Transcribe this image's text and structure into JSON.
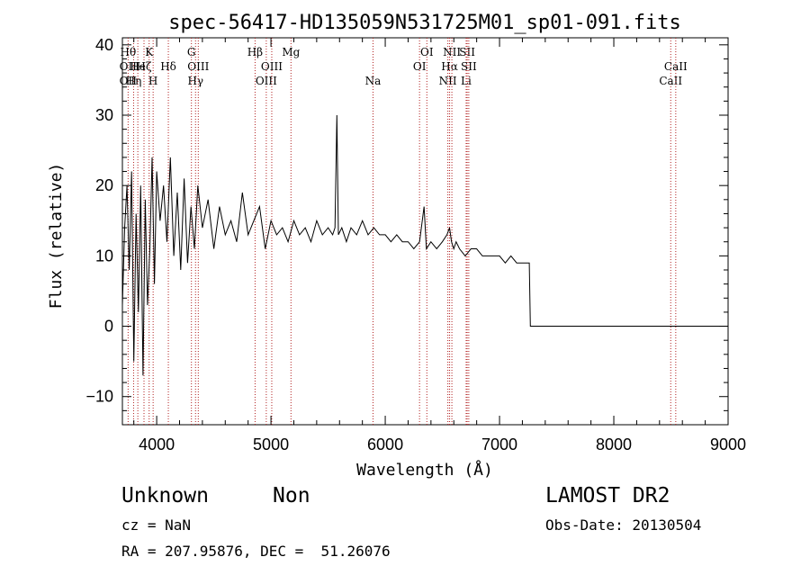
{
  "chart_data": {
    "type": "line",
    "title": "spec-56417-HD135059N531725M01_sp01-091.fits",
    "xlabel": "Wavelength (Å)",
    "ylabel": "Flux (relative)",
    "xlim": [
      3700,
      9000
    ],
    "ylim": [
      -14,
      41
    ],
    "x_ticks": [
      4000,
      5000,
      6000,
      7000,
      8000,
      9000
    ],
    "y_ticks": [
      -10,
      0,
      10,
      20,
      30,
      40
    ],
    "grid": false,
    "line_color": "#000000",
    "marker_color": "#b22222",
    "series": [
      {
        "x": [
          3700,
          3720,
          3740,
          3760,
          3780,
          3800,
          3820,
          3840,
          3860,
          3880,
          3900,
          3920,
          3940,
          3960,
          3980,
          4000,
          4030,
          4060,
          4090,
          4120,
          4150,
          4180,
          4210,
          4240,
          4270,
          4300,
          4330,
          4360,
          4400,
          4450,
          4500,
          4550,
          4600,
          4650,
          4700,
          4750,
          4800,
          4850,
          4900,
          4950,
          5000,
          5050,
          5100,
          5150,
          5200,
          5250,
          5300,
          5350,
          5400,
          5450,
          5500,
          5540,
          5560,
          5577,
          5590,
          5620,
          5660,
          5700,
          5750,
          5800,
          5850,
          5900,
          5950,
          6000,
          6050,
          6100,
          6150,
          6200,
          6250,
          6300,
          6340,
          6360,
          6400,
          6450,
          6500,
          6540,
          6563,
          6580,
          6600,
          6620,
          6650,
          6700,
          6750,
          6800,
          6850,
          6900,
          6950,
          7000,
          7050,
          7100,
          7150,
          7200,
          7250,
          7260,
          7270,
          7280,
          7300,
          7400,
          7500,
          7600,
          7700,
          7800,
          7900,
          8000,
          8100,
          8200,
          8300,
          8400,
          8500,
          8600,
          8700,
          8800,
          8900,
          9000
        ],
        "y": [
          3,
          14,
          20,
          8,
          22,
          -5,
          16,
          2,
          20,
          -7,
          18,
          3,
          11,
          24,
          6,
          22,
          15,
          20,
          12,
          24,
          10,
          19,
          8,
          21,
          9,
          17,
          11,
          20,
          14,
          18,
          11,
          17,
          13,
          15,
          12,
          19,
          13,
          15,
          17,
          11,
          15,
          13,
          14,
          12,
          15,
          13,
          14,
          12,
          15,
          13,
          14,
          13,
          14,
          30,
          13,
          14,
          12,
          14,
          13,
          15,
          13,
          14,
          13,
          13,
          12,
          13,
          12,
          12,
          11,
          12,
          17,
          11,
          12,
          11,
          12,
          13,
          14,
          12,
          11,
          12,
          11,
          10,
          11,
          11,
          10,
          10,
          10,
          10,
          9,
          10,
          9,
          9,
          9,
          9,
          0,
          0,
          0,
          0,
          0,
          0,
          0,
          0,
          0,
          0,
          0,
          0,
          0,
          0,
          0,
          0,
          0,
          0,
          0,
          0
        ]
      }
    ],
    "lines": [
      {
        "x": 3750,
        "labels": [
          {
            "text": "Hθ",
            "row": 0
          },
          {
            "text": "OII",
            "row": 1
          },
          {
            "text": "OII",
            "row": 2
          }
        ]
      },
      {
        "x": 3798,
        "labels": [
          {
            "text": "Hη",
            "row": 2
          }
        ]
      },
      {
        "x": 3835,
        "labels": [
          {
            "text": "He",
            "row": 1
          }
        ]
      },
      {
        "x": 3889,
        "labels": [
          {
            "text": "Hζ",
            "row": 1
          }
        ]
      },
      {
        "x": 3934,
        "labels": [
          {
            "text": "K",
            "row": 0
          }
        ]
      },
      {
        "x": 3969,
        "labels": [
          {
            "text": "H",
            "row": 2
          }
        ]
      },
      {
        "x": 4102,
        "labels": [
          {
            "text": "Hδ",
            "row": 1
          }
        ]
      },
      {
        "x": 4304,
        "labels": [
          {
            "text": "G",
            "row": 0
          }
        ]
      },
      {
        "x": 4340,
        "labels": [
          {
            "text": "Hγ",
            "row": 2
          }
        ]
      },
      {
        "x": 4364,
        "labels": [
          {
            "text": "OIII",
            "row": 1
          }
        ]
      },
      {
        "x": 4861,
        "labels": [
          {
            "text": "Hβ",
            "row": 0
          }
        ]
      },
      {
        "x": 4959,
        "labels": [
          {
            "text": "OIII",
            "row": 2
          }
        ]
      },
      {
        "x": 5007,
        "labels": [
          {
            "text": "OIII",
            "row": 1
          }
        ]
      },
      {
        "x": 5175,
        "labels": [
          {
            "text": "Mg",
            "row": 0
          }
        ]
      },
      {
        "x": 5893,
        "labels": [
          {
            "text": "Na",
            "row": 2
          }
        ]
      },
      {
        "x": 6300,
        "labels": [
          {
            "text": "OI",
            "row": 1
          }
        ]
      },
      {
        "x": 6364,
        "labels": [
          {
            "text": "OI",
            "row": 0
          }
        ]
      },
      {
        "x": 6548,
        "labels": [
          {
            "text": "NII",
            "row": 2
          }
        ]
      },
      {
        "x": 6563,
        "labels": [
          {
            "text": "Hα",
            "row": 1
          }
        ]
      },
      {
        "x": 6583,
        "labels": [
          {
            "text": "NII",
            "row": 0
          }
        ]
      },
      {
        "x": 6708,
        "labels": [
          {
            "text": "Li",
            "row": 2
          }
        ]
      },
      {
        "x": 6717,
        "labels": [
          {
            "text": "SII",
            "row": 0
          }
        ]
      },
      {
        "x": 6731,
        "labels": [
          {
            "text": "SII",
            "row": 1
          }
        ]
      },
      {
        "x": 8498,
        "labels": [
          {
            "text": "CaII",
            "row": 2
          }
        ]
      },
      {
        "x": 8542,
        "labels": [
          {
            "text": "CaII",
            "row": 1
          }
        ]
      }
    ]
  },
  "info": {
    "class_text": "Unknown",
    "subclass_text": "Non",
    "cz_text": "cz = NaN",
    "coords_text": "RA = 207.95876, DEC =  51.26076",
    "survey_text": "LAMOST DR2",
    "obs_date_text": "Obs-Date: 20130504"
  }
}
